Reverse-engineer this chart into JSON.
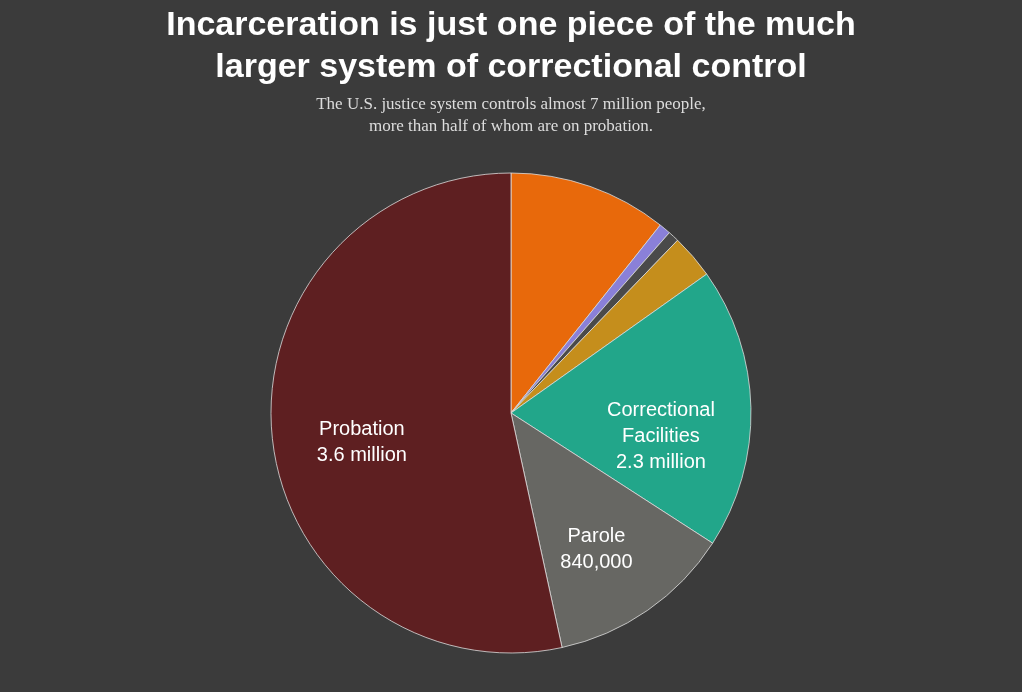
{
  "chart_data": {
    "type": "pie",
    "title": [
      "Incarceration is just one piece of the much",
      "larger system of correctional control"
    ],
    "subtitle": [
      "The U.S. justice system controls almost 7 million people,",
      "more than half of whom are on probation."
    ],
    "categories": [
      null,
      null,
      null,
      null,
      null,
      "Parole",
      "Probation"
    ],
    "values": [
      720000,
      53000,
      50000,
      200000,
      1277000,
      840000,
      3600000
    ],
    "value_labels": [
      null,
      null,
      null,
      null,
      null,
      "840,000",
      "3.6 million"
    ],
    "annotations": [
      "Correctional Facilities 2.3 million"
    ],
    "colors": [
      "#e8690b",
      "#8a80d8",
      "#4a4a4a",
      "#c58e1c",
      "#22a68a",
      "#676763",
      "#5e1f21"
    ],
    "legend": false
  }
}
